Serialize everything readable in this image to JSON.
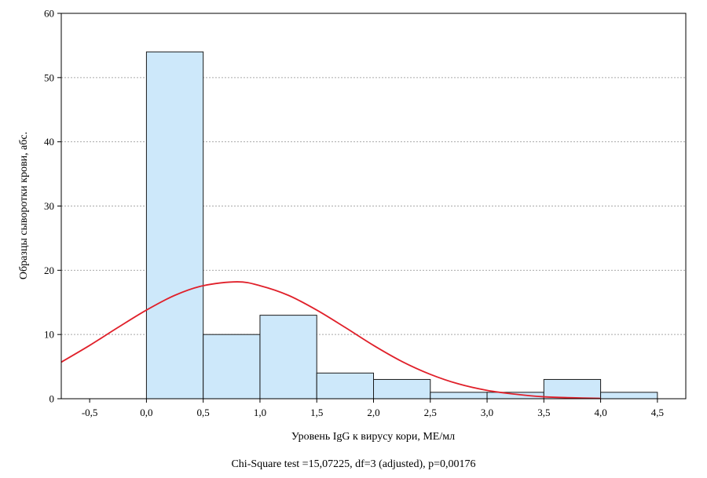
{
  "chart_data": {
    "type": "bar",
    "subtype": "histogram-with-normal-fit",
    "xlabel": "Уровень IgG к вирусу кори, МЕ/мл",
    "ylabel": "Образцы сыворотки крови, абс.",
    "caption": "Chi-Square test =15,07225, df=3 (adjusted), p=0,00176",
    "xlim": [
      -0.75,
      4.75
    ],
    "ylim": [
      0,
      60
    ],
    "x_ticks": [
      -0.5,
      0.0,
      0.5,
      1.0,
      1.5,
      2.0,
      2.5,
      3.0,
      3.5,
      4.0,
      4.5
    ],
    "x_tick_labels": [
      "-0,5",
      "0,0",
      "0,5",
      "1,0",
      "1,5",
      "2,0",
      "2,5",
      "3,0",
      "3,5",
      "4,0",
      "4,5"
    ],
    "y_ticks": [
      0,
      10,
      20,
      30,
      40,
      50,
      60
    ],
    "y_tick_labels": [
      "0",
      "10",
      "20",
      "30",
      "40",
      "50",
      "60"
    ],
    "grid": "horizontal dashed",
    "bins": [
      {
        "from": 0.0,
        "to": 0.5,
        "value": 54
      },
      {
        "from": 0.5,
        "to": 1.0,
        "value": 10
      },
      {
        "from": 1.0,
        "to": 1.5,
        "value": 13
      },
      {
        "from": 1.5,
        "to": 2.0,
        "value": 4
      },
      {
        "from": 2.0,
        "to": 2.5,
        "value": 3
      },
      {
        "from": 2.5,
        "to": 3.0,
        "value": 1
      },
      {
        "from": 3.0,
        "to": 3.5,
        "value": 1
      },
      {
        "from": 3.5,
        "to": 4.0,
        "value": 3
      },
      {
        "from": 4.0,
        "to": 4.5,
        "value": 1
      }
    ],
    "fit_curve": {
      "type": "normal",
      "points": [
        [
          -0.75,
          5.7
        ],
        [
          -0.5,
          8.3
        ],
        [
          -0.25,
          11.1
        ],
        [
          0.0,
          13.8
        ],
        [
          0.25,
          16.1
        ],
        [
          0.5,
          17.6
        ],
        [
          0.8,
          18.2
        ],
        [
          1.0,
          17.6
        ],
        [
          1.25,
          16.1
        ],
        [
          1.5,
          13.8
        ],
        [
          1.75,
          11.1
        ],
        [
          2.0,
          8.3
        ],
        [
          2.25,
          5.8
        ],
        [
          2.5,
          3.8
        ],
        [
          2.75,
          2.3
        ],
        [
          3.0,
          1.3
        ],
        [
          3.25,
          0.7
        ],
        [
          3.5,
          0.3
        ],
        [
          3.75,
          0.15
        ],
        [
          4.0,
          0.05
        ]
      ]
    },
    "colors": {
      "bar_fill": "#cde8fa",
      "bar_stroke": "#1a1a1a",
      "curve": "#e0202a",
      "grid": "#a9a9a9",
      "axis": "#000000"
    }
  }
}
